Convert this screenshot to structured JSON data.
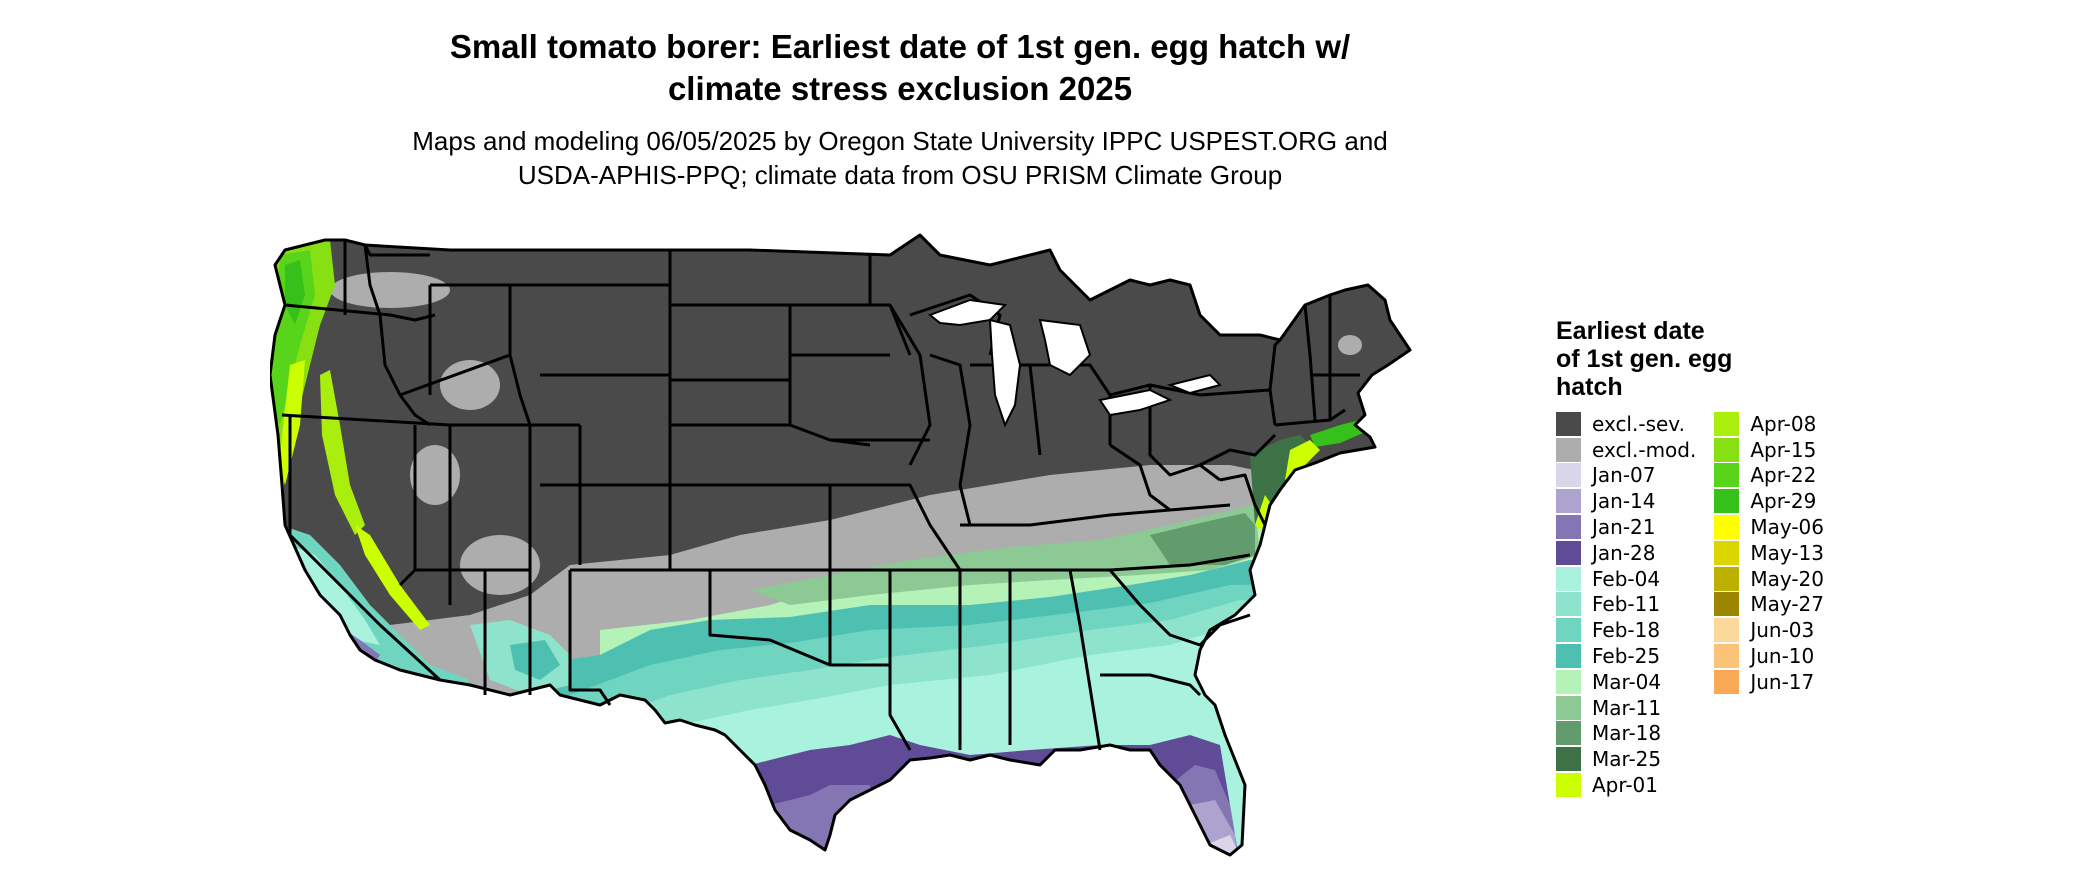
{
  "title": {
    "line1": "Small tomato borer: Earliest date of 1st gen. egg hatch w/",
    "line2": "climate stress exclusion 2025"
  },
  "subtitle": {
    "line1": "Maps and modeling 06/05/2025 by Oregon State University IPPC USPEST.ORG and",
    "line2": "USDA-APHIS-PPQ; climate data from OSU PRISM Climate Group"
  },
  "legend": {
    "title_lines": [
      "Earliest date",
      "of 1st gen. egg",
      "hatch"
    ],
    "columns": [
      [
        {
          "label": "excl.-sev.",
          "color": "#4a4a4a"
        },
        {
          "label": "excl.-mod.",
          "color": "#adadad"
        },
        {
          "label": "Jan-07",
          "color": "#d9d5ea"
        },
        {
          "label": "Jan-14",
          "color": "#aea3cf"
        },
        {
          "label": "Jan-21",
          "color": "#8475b3"
        },
        {
          "label": "Jan-28",
          "color": "#5f4b96"
        },
        {
          "label": "Feb-04",
          "color": "#a8f2de"
        },
        {
          "label": "Feb-11",
          "color": "#8ee3cd"
        },
        {
          "label": "Feb-18",
          "color": "#6fd4c0"
        },
        {
          "label": "Feb-25",
          "color": "#4ec0b2"
        },
        {
          "label": "Mar-04",
          "color": "#b4f2b8"
        },
        {
          "label": "Mar-11",
          "color": "#8cc995"
        },
        {
          "label": "Mar-18",
          "color": "#629c6d"
        },
        {
          "label": "Mar-25",
          "color": "#3c7246"
        },
        {
          "label": "Apr-01",
          "color": "#ccff00"
        }
      ],
      [
        {
          "label": "Apr-08",
          "color": "#a9ee0c"
        },
        {
          "label": "Apr-15",
          "color": "#88e012"
        },
        {
          "label": "Apr-22",
          "color": "#58d41a"
        },
        {
          "label": "Apr-29",
          "color": "#35c119"
        },
        {
          "label": "May-06",
          "color": "#ffff00"
        },
        {
          "label": "May-13",
          "color": "#dcd500"
        },
        {
          "label": "May-20",
          "color": "#bdb000"
        },
        {
          "label": "May-27",
          "color": "#9e8500"
        },
        {
          "label": "Jun-03",
          "color": "#fcd89a"
        },
        {
          "label": "Jun-10",
          "color": "#fbc378"
        },
        {
          "label": "Jun-17",
          "color": "#f9a855"
        }
      ]
    ]
  }
}
